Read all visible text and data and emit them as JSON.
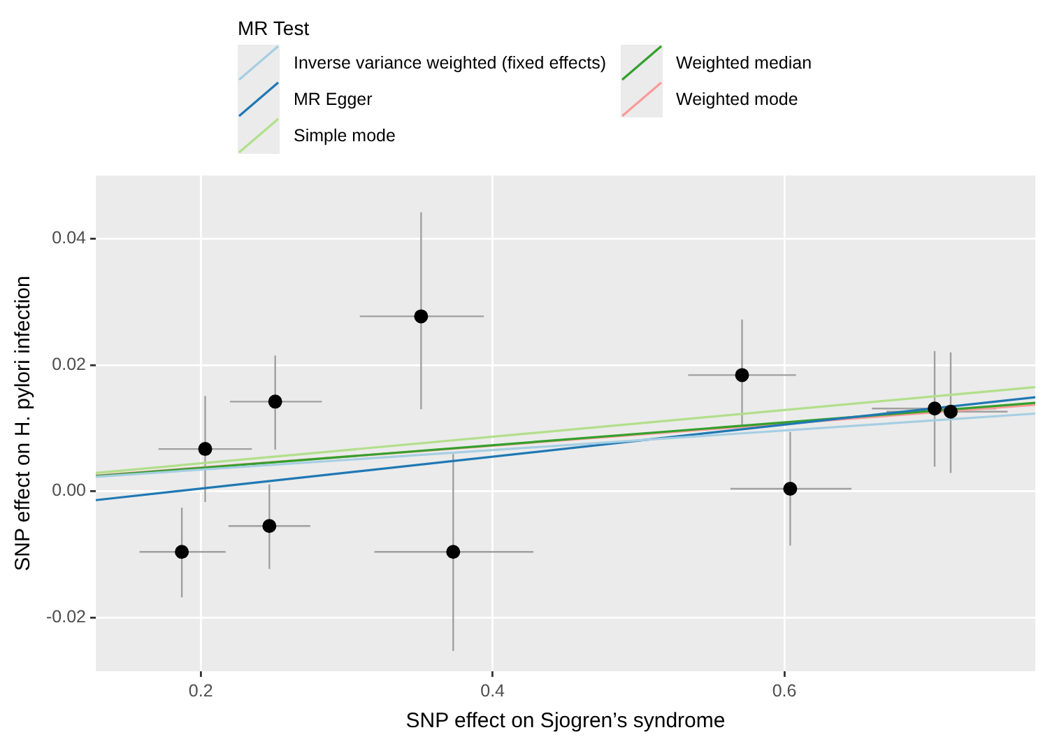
{
  "chart_data": {
    "type": "scatter",
    "xlabel": "SNP effect on Sjogren’s syndrome",
    "ylabel": "SNP effect on H. pylori infection",
    "legend_title": "MR Test",
    "legend": "top",
    "grid": true,
    "xlim": [
      0.128,
      0.772
    ],
    "xticks": [
      0.2,
      0.4,
      0.6
    ],
    "ylim": [
      -0.0285,
      0.05
    ],
    "yticks": [
      -0.02,
      {
        "value": 0,
        "label": "0.00"
      },
      0.02,
      0.04
    ],
    "series": [
      {
        "marker": "circle",
        "color": "#000000",
        "x": [
          0.187,
          0.203,
          0.251,
          0.247,
          0.351,
          0.373,
          0.571,
          0.604,
          0.703,
          0.714
        ],
        "values": [
          -0.0096,
          0.0067,
          0.0142,
          -0.0055,
          0.0277,
          -0.0096,
          0.0184,
          0.0004,
          0.0131,
          0.0126
        ],
        "errors": [
          [
            -0.0168,
            -0.0026
          ],
          [
            -0.0017,
            0.0151
          ],
          [
            0.0066,
            0.0215
          ],
          [
            -0.0123,
            0.0011
          ],
          [
            0.013,
            0.0442
          ],
          [
            -0.0253,
            0.0059
          ],
          [
            0.0105,
            0.0272
          ],
          [
            -0.0086,
            0.0094
          ],
          [
            0.0039,
            0.0222
          ],
          [
            0.0029,
            0.022
          ]
        ],
        "xerrors": [
          [
            0.158,
            0.217
          ],
          [
            0.171,
            0.235
          ],
          [
            0.22,
            0.283
          ],
          [
            0.219,
            0.275
          ],
          [
            0.309,
            0.394
          ],
          [
            0.319,
            0.428
          ],
          [
            0.534,
            0.608
          ],
          [
            0.563,
            0.646
          ],
          [
            0.66,
            0.745
          ],
          [
            0.67,
            0.753
          ]
        ]
      },
      {
        "type": "line",
        "name": "Inverse variance weighted (fixed effects)",
        "color": "#a6cee3",
        "x": [
          0.128,
          0.772
        ],
        "values": [
          0.0023,
          0.0123
        ]
      },
      {
        "type": "line",
        "name": "MR Egger",
        "color": "#1f78b4",
        "x": [
          0.128,
          0.772
        ],
        "values": [
          -0.0014,
          0.0149
        ]
      },
      {
        "type": "line",
        "name": "Simple mode",
        "color": "#b2df8a",
        "x": [
          0.128,
          0.772
        ],
        "values": [
          0.0029,
          0.0165
        ]
      },
      {
        "type": "line",
        "name": "Weighted median",
        "color": "#33a02c",
        "x": [
          0.128,
          0.772
        ],
        "values": [
          0.0024,
          0.014
        ]
      },
      {
        "type": "line",
        "name": "Weighted mode",
        "color": "#fb9a99",
        "x": [
          0.128,
          0.772
        ],
        "values": [
          0.0025,
          0.0137
        ]
      }
    ]
  }
}
